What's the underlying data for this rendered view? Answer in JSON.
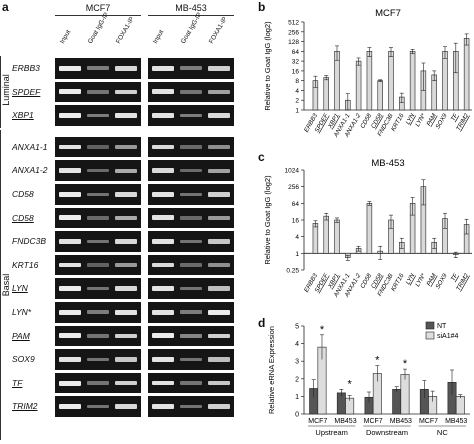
{
  "panel_a": {
    "letter": "a",
    "cell_lines": [
      "MCF7",
      "MB-453"
    ],
    "lanes": [
      "Input",
      "Goat IgG-IP",
      "FOXA1-IP"
    ],
    "groups": [
      {
        "name": "Luminal",
        "rows": [
          {
            "label": "ERBB3",
            "underline": false
          },
          {
            "label": "SPDEF",
            "underline": true
          },
          {
            "label": "XBP1",
            "underline": true
          }
        ]
      },
      {
        "name": "Basal",
        "rows": [
          {
            "label": "ANXA1-1",
            "underline": false
          },
          {
            "label": "ANXA1-2",
            "underline": false
          },
          {
            "label": "CD58",
            "underline": false
          },
          {
            "label": "CD58",
            "underline": true
          },
          {
            "label": "FNDC3B",
            "underline": false
          },
          {
            "label": "KRT16",
            "underline": false
          },
          {
            "label": "LYN",
            "underline": true
          },
          {
            "label": "LYN*",
            "underline": false
          },
          {
            "label": "PAM",
            "underline": true
          },
          {
            "label": "SOX9",
            "underline": false
          },
          {
            "label": "TF",
            "underline": true
          },
          {
            "label": "TRIM2",
            "underline": true
          }
        ]
      }
    ],
    "band_intensity": {
      "MCF7": [
        [
          0.95,
          0.35,
          0.85
        ],
        [
          0.95,
          0.3,
          0.8
        ],
        [
          0.95,
          0.35,
          0.9
        ],
        [
          0.9,
          0.2,
          0.5
        ],
        [
          0.9,
          0.25,
          0.6
        ],
        [
          0.95,
          0.3,
          0.85
        ],
        [
          0.95,
          0.25,
          0.6
        ],
        [
          0.9,
          0.3,
          0.85
        ],
        [
          0.9,
          0.2,
          0.5
        ],
        [
          0.95,
          0.3,
          0.85
        ],
        [
          0.95,
          0.35,
          0.9
        ],
        [
          0.95,
          0.3,
          0.8
        ],
        [
          0.9,
          0.3,
          0.75
        ],
        [
          0.95,
          0.3,
          0.8
        ],
        [
          0.95,
          0.3,
          0.85
        ]
      ],
      "MB-453": [
        [
          0.9,
          0.35,
          0.8
        ],
        [
          0.9,
          0.3,
          0.55
        ],
        [
          0.9,
          0.35,
          0.85
        ],
        [
          0.85,
          0.25,
          0.45
        ],
        [
          0.85,
          0.25,
          0.55
        ],
        [
          0.9,
          0.3,
          0.8
        ],
        [
          0.9,
          0.25,
          0.5
        ],
        [
          0.9,
          0.3,
          0.75
        ],
        [
          0.85,
          0.25,
          0.45
        ],
        [
          0.9,
          0.3,
          0.7
        ],
        [
          0.9,
          0.35,
          0.95
        ],
        [
          0.95,
          0.4,
          0.8
        ],
        [
          0.9,
          0.3,
          0.7
        ],
        [
          0.9,
          0.3,
          0.75
        ],
        [
          0.9,
          0.3,
          0.8
        ]
      ]
    }
  },
  "chart_data": [
    {
      "panel": "b",
      "type": "bar",
      "title": "MCF7",
      "ylabel": "Relative to Goat IgG (log2)",
      "y_scale": "log2",
      "yticks": [
        "1",
        "2",
        "4",
        "8",
        "16",
        "32",
        "64",
        "128",
        "256",
        "512"
      ],
      "ylim": [
        1,
        512
      ],
      "categories": [
        "ERBB3",
        "SPDEF",
        "XBP1",
        "ANXA1-1",
        "ANXA1-2",
        "CD58",
        "CD58",
        "FNDC3B",
        "KRT16",
        "LYN",
        "LYN*",
        "PAM",
        "SOX9",
        "TF",
        "TRIM2"
      ],
      "underlined": [
        false,
        true,
        true,
        false,
        false,
        false,
        true,
        false,
        false,
        true,
        false,
        true,
        false,
        true,
        true
      ],
      "values": [
        8,
        10,
        64,
        2,
        32,
        64,
        8,
        64,
        2.5,
        64,
        16,
        12,
        64,
        64,
        160
      ],
      "errors": [
        3,
        1.5,
        30,
        1.2,
        8,
        20,
        0.5,
        20,
        0.8,
        10,
        12,
        4,
        25,
        50,
        60
      ]
    },
    {
      "panel": "c",
      "type": "bar",
      "title": "MB-453",
      "ylabel": "Relative to Goat IgG (log2)",
      "y_scale": "log2",
      "yticks": [
        "0.25",
        "1",
        "4",
        "16",
        "64",
        "256",
        "1024"
      ],
      "ylim": [
        0.25,
        1024
      ],
      "categories": [
        "ERBB3",
        "SPDEF",
        "XBP1",
        "ANXA1-1",
        "ANXA1-2",
        "CD58",
        "CD58",
        "FNDC3B",
        "KRT16",
        "LYN",
        "LYN*",
        "PAM",
        "SOX9",
        "TF",
        "TRIM2"
      ],
      "underlined": [
        false,
        true,
        true,
        false,
        false,
        false,
        true,
        false,
        false,
        true,
        false,
        true,
        false,
        true,
        true
      ],
      "values": [
        12,
        22,
        16,
        0.7,
        1.5,
        64,
        1.2,
        16,
        2.5,
        64,
        256,
        2.5,
        18,
        0.9,
        11
      ],
      "errors": [
        3,
        6,
        3,
        0.15,
        0.3,
        10,
        0.6,
        8,
        1,
        40,
        200,
        1,
        10,
        0.2,
        6
      ]
    },
    {
      "panel": "d",
      "type": "bar",
      "ylabel": "Relative eRNA Expression",
      "ylim": [
        0,
        5
      ],
      "yticks": [
        "0",
        "1",
        "2",
        "3",
        "4",
        "5"
      ],
      "categories": [
        "MCF7",
        "MB453",
        "MCF7",
        "MB453",
        "MCF7",
        "MB453"
      ],
      "groups": [
        "Upstream",
        "Downstream",
        "NC"
      ],
      "series": [
        {
          "name": "NT",
          "color": "#555555",
          "values": [
            1.45,
            1.2,
            0.95,
            1.4,
            1.4,
            1.8
          ],
          "errors": [
            0.5,
            0.2,
            0.3,
            0.15,
            0.5,
            0.7
          ]
        },
        {
          "name": "siA1#4",
          "color": "#dddddd",
          "values": [
            3.8,
            0.9,
            2.3,
            2.25,
            1.0,
            1.0
          ],
          "errors": [
            0.7,
            0.15,
            0.45,
            0.3,
            0.3,
            0.1
          ]
        }
      ],
      "significance": [
        "*",
        "*",
        "*",
        "*",
        "",
        ""
      ]
    }
  ],
  "labels": {
    "b": "b",
    "c": "c",
    "d": "d"
  }
}
